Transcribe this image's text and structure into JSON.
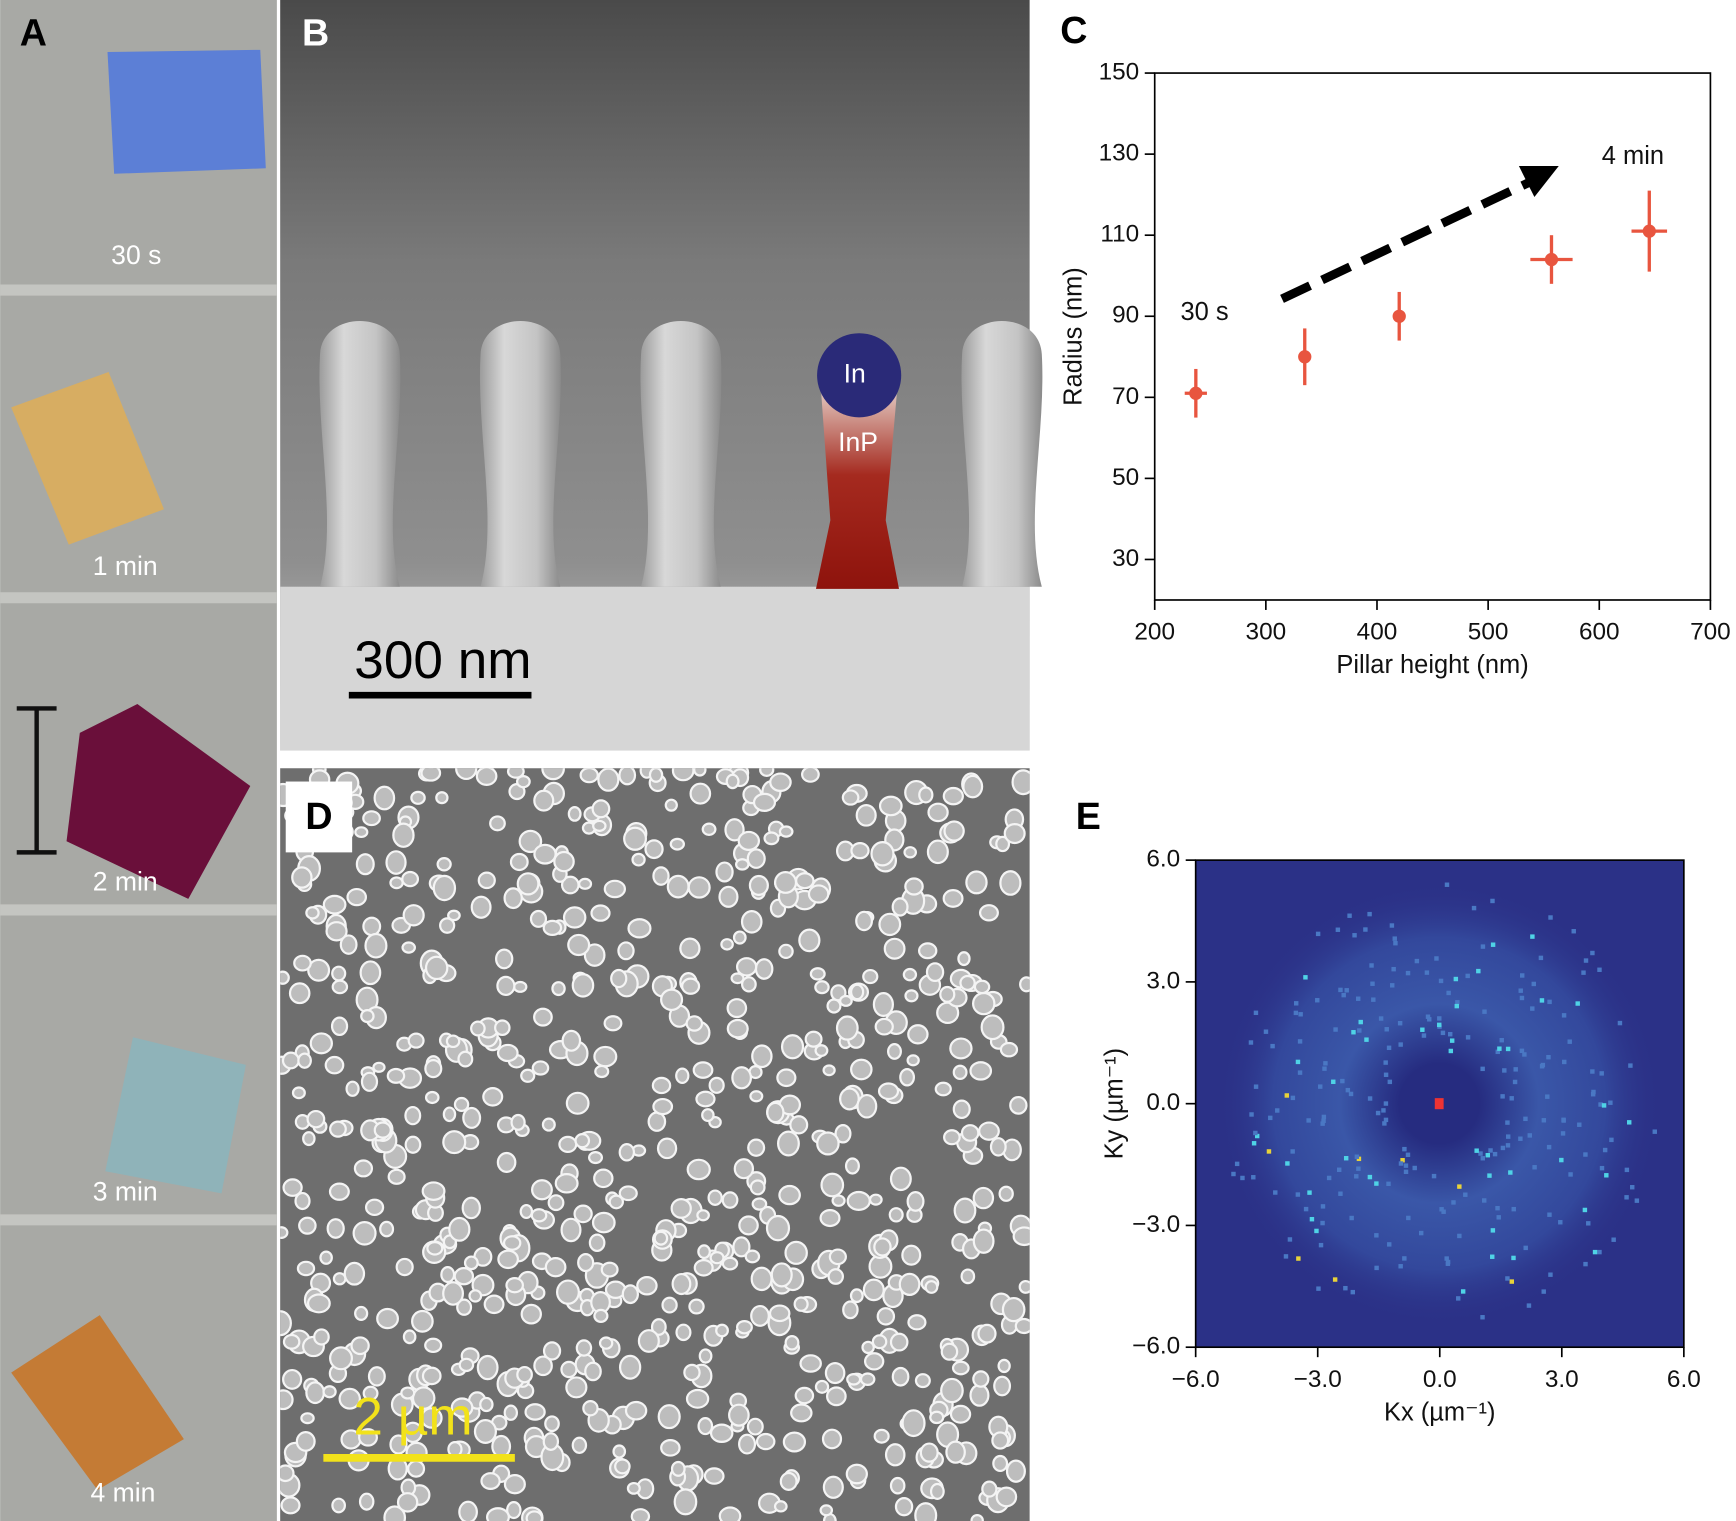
{
  "panels": {
    "A": {
      "label": "A",
      "samples": [
        "30 s",
        "1 min",
        "2 min",
        "3 min",
        "4 min"
      ]
    },
    "B": {
      "label": "B",
      "scale_bar": "300 nm",
      "annotations": [
        "In",
        "InP"
      ]
    },
    "D": {
      "label": "D",
      "scale_bar": "2 µm"
    }
  },
  "chart_data": [
    {
      "type": "scatter",
      "panel_label": "C",
      "x_label": "Pillar height (nm)",
      "y_label": "Radius (nm)",
      "x": [
        237,
        335,
        420,
        557,
        645
      ],
      "values": [
        71,
        80,
        90,
        104,
        111
      ],
      "x_errors": [
        10,
        3,
        3,
        19,
        16
      ],
      "errors": [
        6,
        7,
        6,
        6,
        10
      ],
      "color": "#e8553f",
      "xlim": [
        200,
        700
      ],
      "ylim": [
        20,
        150
      ],
      "xticks": [
        200,
        300,
        400,
        500,
        600,
        700
      ],
      "yticks": [
        30,
        50,
        70,
        90,
        110,
        130,
        150
      ],
      "annotations": [
        "30 s",
        "4 min"
      ]
    },
    {
      "type": "heatmap",
      "panel_label": "E",
      "x_label": "Kx (µm⁻¹)",
      "y_label": "Ky (µm⁻¹)",
      "xlim": [
        -6,
        6
      ],
      "ylim": [
        -6,
        6
      ],
      "xticks": [
        {
          "value": -6,
          "label": "−6.0"
        },
        {
          "value": -3,
          "label": "−3.0"
        },
        {
          "value": 0,
          "label": "0.0"
        },
        {
          "value": 3,
          "label": "3.0"
        },
        {
          "value": 6,
          "label": "6.0"
        }
      ],
      "yticks": [
        {
          "value": -6,
          "label": "−6.0"
        },
        {
          "value": -3,
          "label": "−3.0"
        },
        {
          "value": 0,
          "label": "0.0"
        },
        {
          "value": 3,
          "label": "3.0"
        },
        {
          "value": 6,
          "label": "6.0"
        }
      ]
    }
  ]
}
